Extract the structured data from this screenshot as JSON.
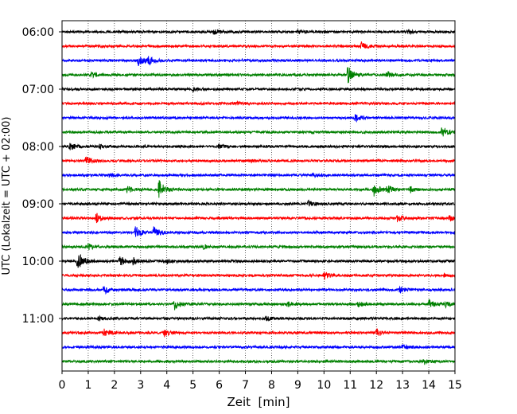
{
  "chart_data": {
    "type": "line",
    "title": "",
    "xlabel": "Zeit  [min]",
    "ylabel": "UTC (Lokalzeit = UTC + 02:00)",
    "xlim": [
      0,
      15
    ],
    "x_ticks": [
      0,
      1,
      2,
      3,
      4,
      5,
      6,
      7,
      8,
      9,
      10,
      11,
      12,
      13,
      14,
      15
    ],
    "x_tick_labels": [
      "0",
      "1",
      "2",
      "3",
      "4",
      "5",
      "6",
      "7",
      "8",
      "9",
      "10",
      "11",
      "12",
      "13",
      "14",
      "15"
    ],
    "y_tick_labels": [
      "06:00",
      "07:00",
      "08:00",
      "09:00",
      "10:00",
      "11:00"
    ],
    "trace_interval_min": 15,
    "grid": "vertical dotted",
    "legend": "none",
    "trace_color_cycle": [
      "#000000",
      "#ff0000",
      "#0000ff",
      "#008000"
    ],
    "traces": [
      {
        "start": "06:00",
        "events": [
          [
            5.8,
            0.4
          ],
          [
            9.0,
            0.3
          ],
          [
            13.2,
            0.3
          ]
        ]
      },
      {
        "start": "06:15",
        "events": [
          [
            11.4,
            0.8
          ]
        ]
      },
      {
        "start": "06:30",
        "events": [
          [
            2.9,
            1.0
          ],
          [
            3.3,
            0.6
          ]
        ]
      },
      {
        "start": "06:45",
        "events": [
          [
            1.1,
            0.4
          ],
          [
            10.9,
            1.6
          ],
          [
            12.4,
            0.5
          ]
        ]
      },
      {
        "start": "07:00",
        "events": [
          [
            5.0,
            0.3
          ]
        ]
      },
      {
        "start": "07:15",
        "events": [
          [
            6.6,
            0.3
          ]
        ]
      },
      {
        "start": "07:30",
        "events": [
          [
            11.2,
            0.6
          ]
        ]
      },
      {
        "start": "07:45",
        "events": [
          [
            14.5,
            1.1
          ]
        ]
      },
      {
        "start": "08:00",
        "events": [
          [
            0.3,
            0.7
          ],
          [
            1.4,
            0.4
          ],
          [
            6.0,
            0.4
          ]
        ]
      },
      {
        "start": "08:15",
        "events": [
          [
            0.9,
            0.8
          ],
          [
            7.2,
            0.3
          ]
        ]
      },
      {
        "start": "08:30",
        "events": [
          [
            1.8,
            0.3
          ],
          [
            9.6,
            0.3
          ]
        ]
      },
      {
        "start": "08:45",
        "events": [
          [
            2.5,
            0.6
          ],
          [
            3.7,
            1.8
          ],
          [
            11.9,
            1.2
          ],
          [
            12.4,
            0.8
          ],
          [
            13.3,
            0.5
          ]
        ]
      },
      {
        "start": "09:00",
        "events": [
          [
            9.4,
            0.5
          ]
        ]
      },
      {
        "start": "09:15",
        "events": [
          [
            1.3,
            0.9
          ],
          [
            12.8,
            0.6
          ],
          [
            14.8,
            0.6
          ]
        ]
      },
      {
        "start": "09:30",
        "events": [
          [
            2.8,
            1.1
          ],
          [
            3.5,
            1.0
          ]
        ]
      },
      {
        "start": "09:45",
        "events": [
          [
            1.0,
            0.5
          ],
          [
            5.4,
            0.3
          ]
        ]
      },
      {
        "start": "10:00",
        "events": [
          [
            0.6,
            2.0
          ],
          [
            2.2,
            1.0
          ],
          [
            2.7,
            0.6
          ],
          [
            4.0,
            0.4
          ]
        ]
      },
      {
        "start": "10:15",
        "events": [
          [
            10.0,
            0.7
          ],
          [
            14.6,
            0.3
          ]
        ]
      },
      {
        "start": "10:30",
        "events": [
          [
            1.6,
            0.8
          ],
          [
            12.9,
            0.5
          ]
        ]
      },
      {
        "start": "10:45",
        "events": [
          [
            4.3,
            0.9
          ],
          [
            8.6,
            0.4
          ],
          [
            11.3,
            0.5
          ],
          [
            14.0,
            1.0
          ],
          [
            14.6,
            0.5
          ]
        ]
      },
      {
        "start": "11:00",
        "events": [
          [
            1.4,
            0.3
          ],
          [
            7.8,
            0.3
          ]
        ]
      },
      {
        "start": "11:15",
        "events": [
          [
            1.6,
            0.7
          ],
          [
            3.9,
            0.7
          ],
          [
            12.0,
            0.6
          ]
        ]
      },
      {
        "start": "11:30",
        "events": [
          [
            13.0,
            0.4
          ]
        ]
      },
      {
        "start": "11:45",
        "events": [
          [
            13.8,
            0.5
          ]
        ]
      }
    ]
  }
}
